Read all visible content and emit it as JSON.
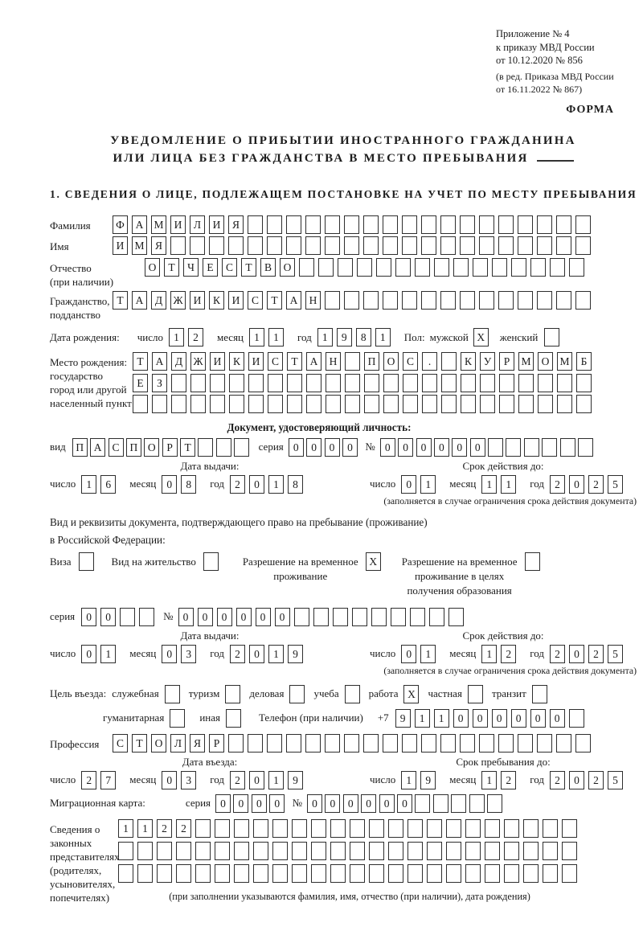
{
  "labels": {
    "day": "число",
    "month": "месяц",
    "year": "год",
    "series": "серия",
    "number": "№"
  },
  "header": {
    "appendix": "Приложение № 4\nк приказу МВД России\nот 10.12.2020 № 856",
    "amendment": "(в ред. Приказа МВД России\nот 16.11.2022 № 867)",
    "form_label": "ФОРМА"
  },
  "title": {
    "line1": "УВЕДОМЛЕНИЕ О ПРИБЫТИИ ИНОСТРАННОГО ГРАЖДАНИНА",
    "line2": "ИЛИ ЛИЦА БЕЗ ГРАЖДАНСТВА В МЕСТО ПРЕБЫВАНИЯ"
  },
  "section1_heading": "1. СВЕДЕНИЯ О ЛИЦЕ, ПОДЛЕЖАЩЕМ ПОСТАНОВКЕ НА УЧЕТ ПО МЕСТУ ПРЕБЫВАНИЯ",
  "person": {
    "surname": {
      "label": "Фамилия",
      "value": "ФАМИЛИЯ",
      "count": 25
    },
    "name": {
      "label": "Имя",
      "value": "ИМЯ",
      "count": 25
    },
    "patronymic": {
      "label": "Отчество\n(при наличии)",
      "value": "ОТЧЕСТВО",
      "count": 23
    },
    "citizenship": {
      "label": "Гражданство,\nподданство",
      "value": "ТАДЖИКИСТАН",
      "count": 25
    },
    "birth_date_label": "Дата рождения:",
    "birth_date": {
      "day": {
        "value": "12",
        "count": 2
      },
      "month": {
        "value": "11",
        "count": 2
      },
      "year": {
        "value": "1981",
        "count": 4
      }
    },
    "sex": {
      "label": "Пол:",
      "male_label": "мужской",
      "male": "X",
      "female_label": "женский",
      "female": ""
    },
    "birth_place": {
      "label": "Место рождения:\nгосударство\nгород или другой\nнаселенный пункт",
      "rows": [
        {
          "value": "ТАДЖИКИСТАН ПОС. КУРМОМБ",
          "count": 24
        },
        {
          "value": "ЕЗ",
          "count": 24
        },
        {
          "value": "",
          "count": 24
        }
      ]
    }
  },
  "identity_doc": {
    "heading": "Документ, удостоверяющий личность:",
    "kind": {
      "label": "вид",
      "value": "ПАСПОРТ",
      "count": 10
    },
    "series": {
      "value": "0000",
      "count": 4
    },
    "number": {
      "value": "000000",
      "count": 12
    },
    "issue_date": {
      "heading": "Дата выдачи:",
      "day": {
        "value": "16",
        "count": 2
      },
      "month": {
        "value": "08",
        "count": 2
      },
      "year": {
        "value": "2018",
        "count": 4
      }
    },
    "valid_until": {
      "heading": "Срок действия до:",
      "day": {
        "value": "01",
        "count": 2
      },
      "month": {
        "value": "11",
        "count": 2
      },
      "year": {
        "value": "2025",
        "count": 4
      }
    },
    "note": "(заполняется в случае ограничения срока действия документа)"
  },
  "residence_doc": {
    "intro": "Вид и реквизиты документа, подтверждающего право на пребывание (проживание)\nв Российской Федерации:",
    "options": [
      {
        "label": "Виза",
        "checked": ""
      },
      {
        "label": "Вид на жительство",
        "checked": ""
      },
      {
        "label": "Разрешение на временное\nпроживание",
        "checked": "X"
      },
      {
        "label": "Разрешение на временное\nпроживание в целях\nполучения образования",
        "checked": ""
      }
    ],
    "series": {
      "value": "00",
      "count": 4
    },
    "number": {
      "value": "000000",
      "count": 15
    },
    "issue_date": {
      "heading": "Дата выдачи:",
      "day": {
        "value": "01",
        "count": 2
      },
      "month": {
        "value": "03",
        "count": 2
      },
      "year": {
        "value": "2019",
        "count": 4
      }
    },
    "valid_until": {
      "heading": "Срок действия до:",
      "day": {
        "value": "01",
        "count": 2
      },
      "month": {
        "value": "12",
        "count": 2
      },
      "year": {
        "value": "2025",
        "count": 4
      }
    },
    "note": "(заполняется в случае ограничения срока действия документа)"
  },
  "visit": {
    "purpose_label": "Цель въезда:",
    "purposes_row1": [
      {
        "label": "служебная",
        "checked": ""
      },
      {
        "label": "туризм",
        "checked": ""
      },
      {
        "label": "деловая",
        "checked": ""
      },
      {
        "label": "учеба",
        "checked": ""
      },
      {
        "label": "работа",
        "checked": "X"
      },
      {
        "label": "частная",
        "checked": ""
      },
      {
        "label": "транзит",
        "checked": ""
      }
    ],
    "purposes_row2": [
      {
        "label": "гуманитарная",
        "checked": ""
      },
      {
        "label": "иная",
        "checked": ""
      }
    ],
    "phone": {
      "label": "Телефон (при наличии)",
      "prefix": "+7",
      "value": "911000000",
      "count": 10
    },
    "profession": {
      "label": "Профессия",
      "value": "СТОЛЯР",
      "count": 25
    },
    "entry_date": {
      "heading": "Дата въезда:",
      "day": {
        "value": "27",
        "count": 2
      },
      "month": {
        "value": "03",
        "count": 2
      },
      "year": {
        "value": "2019",
        "count": 4
      }
    },
    "stay_until": {
      "heading": "Срок пребывания до:",
      "day": {
        "value": "19",
        "count": 2
      },
      "month": {
        "value": "12",
        "count": 2
      },
      "year": {
        "value": "2025",
        "count": 4
      }
    },
    "migration_card_label": "Миграционная карта:",
    "migration_card": {
      "series": {
        "value": "0000",
        "count": 4
      },
      "number": {
        "value": "000000",
        "count": 11
      }
    }
  },
  "legal_reps": {
    "label": "Сведения о\nзаконных\nпредставителях\n(родителях,\nусыновителях,\nпопечителях)",
    "rows": [
      {
        "value": "1122",
        "count": 24
      },
      {
        "value": "",
        "count": 24
      },
      {
        "value": "",
        "count": 24
      }
    ],
    "caption": "(при заполнении указываются фамилия, имя, отчество (при наличии), дата рождения)"
  }
}
